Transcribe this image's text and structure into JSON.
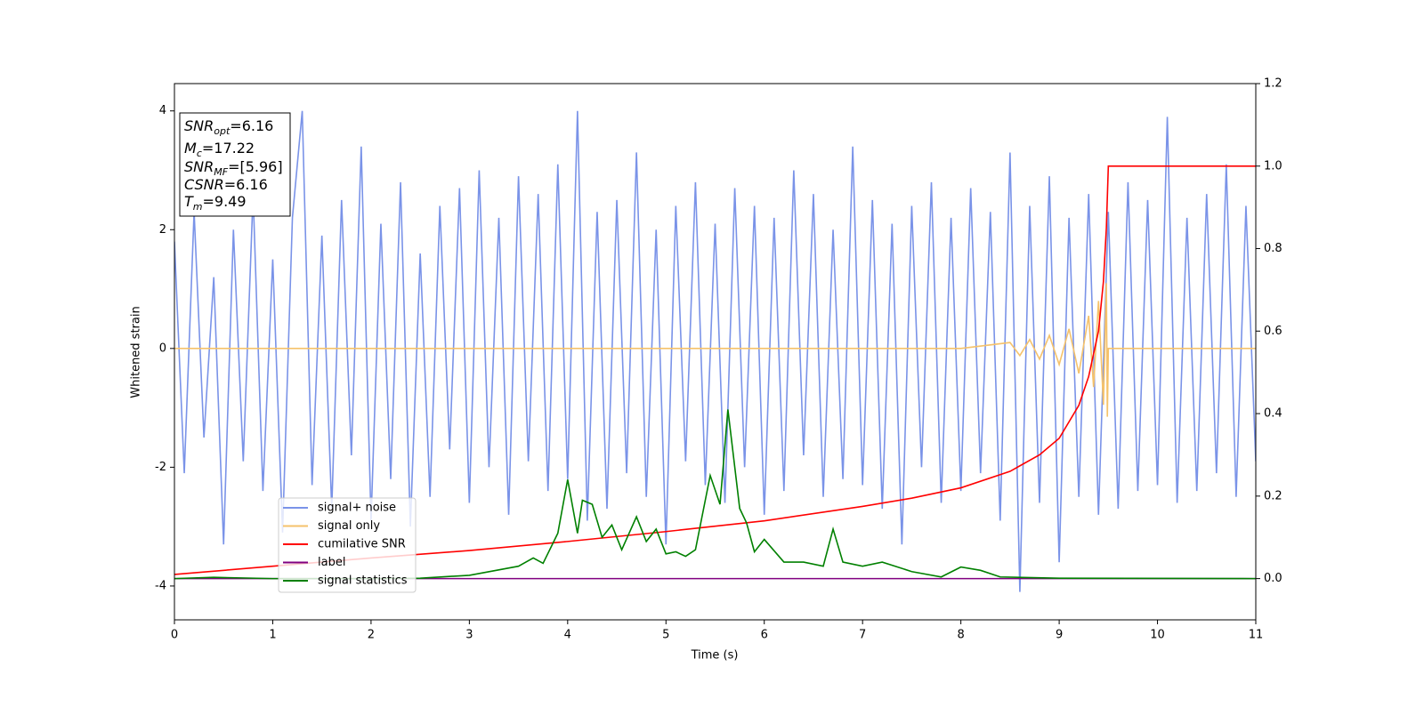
{
  "chart_data": {
    "type": "line",
    "xlabel": "Time (s)",
    "ylabel": "Whitened strain",
    "xlim": [
      0,
      11
    ],
    "ylim": [
      -4.57,
      4.46
    ],
    "y2lim": [
      -0.1,
      1.2
    ],
    "xticks": [
      0,
      1,
      2,
      3,
      4,
      5,
      6,
      7,
      8,
      9,
      10,
      11
    ],
    "yticks": [
      -4,
      -2,
      0,
      2,
      4
    ],
    "y2ticks": [
      {
        "value": 0,
        "label": "0.0"
      },
      0.2,
      0.4,
      0.6,
      0.8,
      {
        "value": 1,
        "label": "1.0"
      },
      1.2
    ],
    "grid": false,
    "annotations": [
      {
        "text": "SNR",
        "sub": "opt",
        "suffix": "=6.16"
      },
      {
        "text": "M",
        "sub": "c",
        "suffix": "=17.22"
      },
      {
        "text": "SNR",
        "sub": "MF",
        "suffix": "=[5.96]"
      },
      {
        "text": "CSNR",
        "suffix": "=6.16"
      },
      {
        "text": "T",
        "sub": "m",
        "suffix": "=9.49"
      }
    ],
    "series": [
      {
        "name": "signal+ noise",
        "color": "#7a93e8",
        "axis": "y",
        "x": [
          0,
          0.1,
          0.2,
          0.3,
          0.4,
          0.5,
          0.6,
          0.7,
          0.8,
          0.9,
          1,
          1.1,
          1.2,
          1.3,
          1.4,
          1.5,
          1.6,
          1.7,
          1.8,
          1.9,
          2,
          2.1,
          2.2,
          2.3,
          2.4,
          2.5,
          2.6,
          2.7,
          2.8,
          2.9,
          3,
          3.1,
          3.2,
          3.3,
          3.4,
          3.5,
          3.6,
          3.7,
          3.8,
          3.9,
          4,
          4.1,
          4.2,
          4.3,
          4.4,
          4.5,
          4.6,
          4.7,
          4.8,
          4.9,
          5,
          5.1,
          5.2,
          5.3,
          5.4,
          5.5,
          5.6,
          5.7,
          5.8,
          5.9,
          6,
          6.1,
          6.2,
          6.3,
          6.4,
          6.5,
          6.6,
          6.7,
          6.8,
          6.9,
          7,
          7.1,
          7.2,
          7.3,
          7.4,
          7.5,
          7.6,
          7.7,
          7.8,
          7.9,
          8,
          8.1,
          8.2,
          8.3,
          8.4,
          8.5,
          8.6,
          8.7,
          8.8,
          8.9,
          9,
          9.1,
          9.2,
          9.3,
          9.4,
          9.5,
          9.6,
          9.7,
          9.8,
          9.9,
          10,
          10.1,
          10.2,
          10.3,
          10.4,
          10.5,
          10.6,
          10.7,
          10.8,
          10.9,
          11
        ],
        "values": [
          1.8,
          -2.1,
          2.3,
          -1.5,
          1.2,
          -3.3,
          2.0,
          -1.9,
          2.6,
          -2.4,
          1.5,
          -3.1,
          2.2,
          4.0,
          -2.3,
          1.9,
          -2.7,
          2.5,
          -1.8,
          3.4,
          -2.9,
          2.1,
          -2.2,
          2.8,
          -3.0,
          1.6,
          -2.5,
          2.4,
          -1.7,
          2.7,
          -2.6,
          3.0,
          -2.0,
          2.2,
          -2.8,
          2.9,
          -1.9,
          2.6,
          -2.4,
          3.1,
          -2.2,
          4.0,
          -2.9,
          2.3,
          -2.7,
          2.5,
          -2.1,
          3.3,
          -2.5,
          2.0,
          -3.3,
          2.4,
          -1.9,
          2.8,
          -2.3,
          2.1,
          -2.6,
          2.7,
          -2.0,
          2.4,
          -2.8,
          2.2,
          -2.4,
          3.0,
          -1.8,
          2.6,
          -2.5,
          2.0,
          -2.2,
          3.4,
          -2.3,
          2.5,
          -2.7,
          2.1,
          -3.3,
          2.4,
          -2.0,
          2.8,
          -2.6,
          2.2,
          -2.4,
          2.7,
          -2.1,
          2.3,
          -2.9,
          3.3,
          -4.1,
          2.4,
          -2.6,
          2.9,
          -3.6,
          2.2,
          -2.5,
          2.6,
          -2.8,
          2.3,
          -2.7,
          2.8,
          -2.4,
          2.5,
          -2.3,
          3.9,
          -2.6,
          2.2,
          -2.4,
          2.6,
          -2.1,
          3.1,
          -2.5,
          2.4,
          -1.9
        ]
      },
      {
        "name": "signal only",
        "color": "#f5c26b",
        "axis": "y",
        "x": [
          0,
          8,
          8.5,
          8.6,
          8.7,
          8.8,
          8.9,
          9.0,
          9.1,
          9.2,
          9.3,
          9.35,
          9.4,
          9.45,
          9.48,
          9.49,
          9.5,
          11
        ],
        "values": [
          0,
          0,
          0.1,
          -0.12,
          0.15,
          -0.18,
          0.22,
          -0.27,
          0.33,
          -0.42,
          0.55,
          -0.65,
          0.8,
          -0.95,
          1.1,
          -1.15,
          0,
          0
        ]
      },
      {
        "name": "cumilative SNR",
        "color": "#ff0000",
        "axis": "y2",
        "x": [
          0,
          1,
          2,
          3,
          4,
          5,
          6,
          7,
          7.5,
          8,
          8.5,
          8.8,
          9,
          9.2,
          9.3,
          9.4,
          9.45,
          9.48,
          9.5,
          11
        ],
        "values": [
          0.01,
          0.03,
          0.05,
          0.068,
          0.09,
          0.114,
          0.14,
          0.175,
          0.195,
          0.22,
          0.26,
          0.3,
          0.34,
          0.42,
          0.49,
          0.6,
          0.72,
          0.85,
          1.0,
          1.0
        ]
      },
      {
        "name": "label",
        "color": "#800080",
        "axis": "y2",
        "x": [
          0,
          11
        ],
        "values": [
          0,
          0
        ]
      },
      {
        "name": "signal statistics",
        "color": "#008000",
        "axis": "y2",
        "x": [
          0,
          0.4,
          1,
          2,
          2.5,
          3,
          3.5,
          3.65,
          3.75,
          3.9,
          4.0,
          4.1,
          4.15,
          4.25,
          4.35,
          4.45,
          4.55,
          4.7,
          4.8,
          4.9,
          5.0,
          5.1,
          5.2,
          5.3,
          5.45,
          5.55,
          5.63,
          5.75,
          5.82,
          5.9,
          6.0,
          6.2,
          6.4,
          6.6,
          6.7,
          6.8,
          7.0,
          7.2,
          7.5,
          7.8,
          8.0,
          8.2,
          8.4,
          9,
          11
        ],
        "values": [
          0,
          0.003,
          0,
          0,
          0.001,
          0.008,
          0.03,
          0.05,
          0.037,
          0.11,
          0.24,
          0.11,
          0.19,
          0.18,
          0.1,
          0.13,
          0.07,
          0.15,
          0.09,
          0.12,
          0.06,
          0.065,
          0.054,
          0.07,
          0.25,
          0.18,
          0.41,
          0.17,
          0.135,
          0.065,
          0.095,
          0.04,
          0.04,
          0.03,
          0.12,
          0.04,
          0.03,
          0.04,
          0.017,
          0.004,
          0.028,
          0.02,
          0.004,
          0.001,
          0
        ]
      }
    ]
  }
}
